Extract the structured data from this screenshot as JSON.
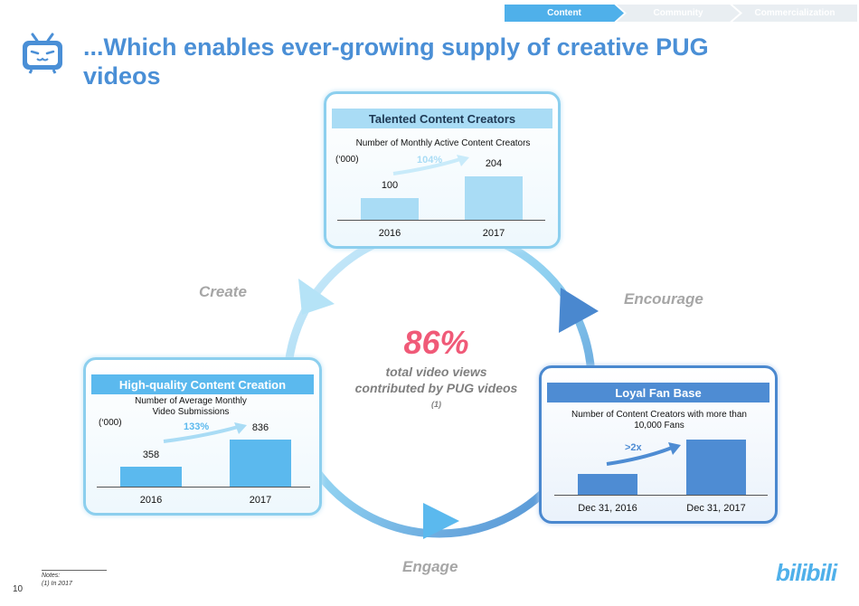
{
  "nav": {
    "items": [
      {
        "label": "Content",
        "active": true
      },
      {
        "label": "Community",
        "active": false
      },
      {
        "label": "Commercialization",
        "active": false
      }
    ]
  },
  "header": {
    "logo_icon": "bilibili-tv-icon",
    "title_line1": "...Which enables ever-growing supply of creative PUG",
    "title_line2": "videos"
  },
  "panels": {
    "talented": {
      "title": "Talented Content Creators",
      "subtitle": "Number of Monthly Active Content Creators",
      "unit": "(‘000)",
      "growth": "104%",
      "values_text": [
        "100",
        "204"
      ],
      "categories": [
        "2016",
        "2017"
      ]
    },
    "quality": {
      "title": "High-quality Content Creation",
      "subtitle": "Number of Average Monthly Video Submissions",
      "unit": "(‘000)",
      "growth": "133%",
      "values_text": [
        "358",
        "836"
      ],
      "categories": [
        "2016",
        "2017"
      ]
    },
    "loyal": {
      "title": "Loyal Fan Base",
      "subtitle": "Number of Content Creators with more than  10,000 Fans",
      "growth": ">2x",
      "categories": [
        "Dec 31, 2016",
        "Dec 31, 2017"
      ]
    }
  },
  "cycle": {
    "create": "Create",
    "encourage": "Encourage",
    "engage": "Engage",
    "stat": "86%",
    "stat_text": "total video views contributed by PUG videos",
    "footnote_ref": "(1)"
  },
  "footer": {
    "notes_title": "Notes:",
    "note1": "(1)   In 2017",
    "page_number": "10",
    "brand": "bilibili"
  },
  "colors": {
    "accent": "#4a8fd6",
    "light_bar": "#a9dcf5",
    "mid_bar": "#5bb9ee",
    "dark_bar": "#4e8cd3",
    "stat": "#f05a78"
  },
  "chart_data": [
    {
      "type": "bar",
      "title": "Number of Monthly Active Content Creators",
      "categories": [
        "2016",
        "2017"
      ],
      "values": [
        100,
        204
      ],
      "ylabel": "('000)"
    },
    {
      "type": "bar",
      "title": "Number of Average Monthly Video Submissions",
      "categories": [
        "2016",
        "2017"
      ],
      "values": [
        358,
        836
      ],
      "ylabel": "('000)"
    },
    {
      "type": "bar",
      "title": "Number of Content Creators with more than  10,000 Fans",
      "categories": [
        "Dec 31, 2016",
        "Dec 31, 2017"
      ],
      "values": [
        1,
        2.4
      ]
    }
  ]
}
